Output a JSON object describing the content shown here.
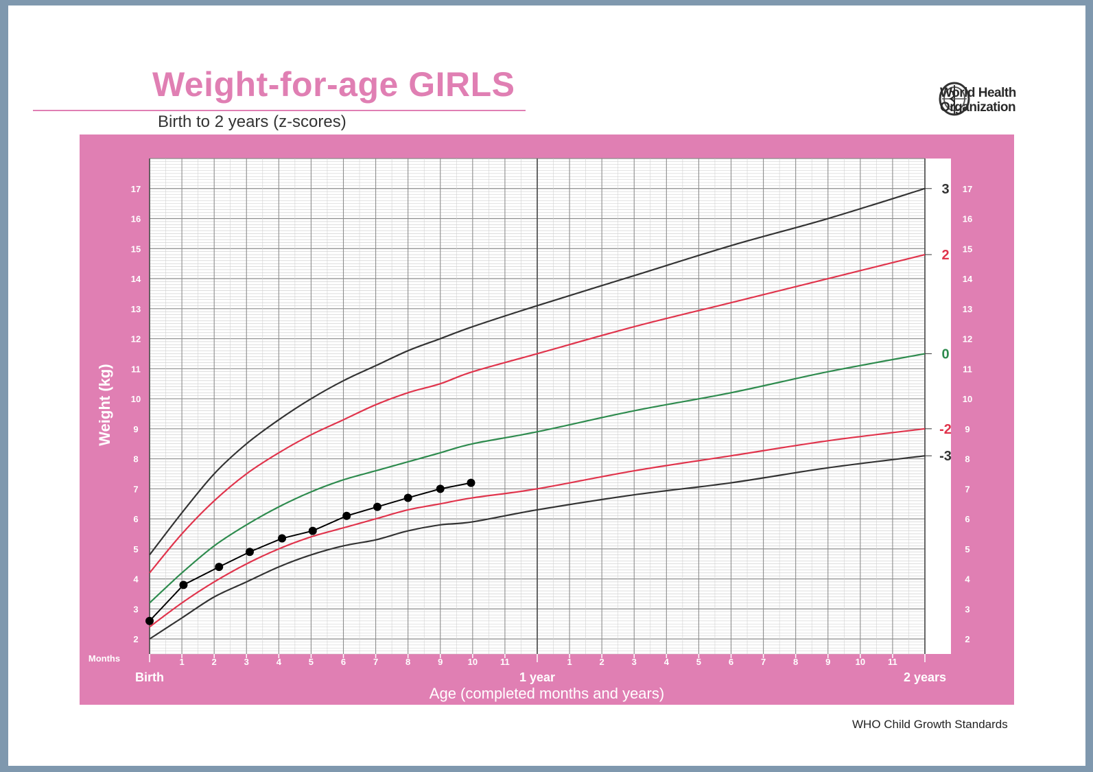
{
  "title": "Weight-for-age GIRLS",
  "subtitle": "Birth to 2 years (z-scores)",
  "logo": {
    "line1": "World Health",
    "line2": "Organization",
    "icon": "who-emblem-icon"
  },
  "footer": "WHO Child Growth Standards",
  "colors": {
    "frame": "#e07fb3",
    "grid": "#b8b8b8",
    "z3": "#333333",
    "z2": "#e0344c",
    "z0": "#2e8b4e",
    "child": "#000000"
  },
  "chart_data": {
    "type": "line",
    "ylabel": "Weight (kg)",
    "xlabel": "Age (completed months and years)",
    "x_unit_label": "Months",
    "ylim": [
      1.5,
      18
    ],
    "xlim": [
      0,
      24
    ],
    "y_ticks": [
      2,
      3,
      4,
      5,
      6,
      7,
      8,
      9,
      10,
      11,
      12,
      13,
      14,
      15,
      16,
      17
    ],
    "x_ticks": [
      {
        "month": 1,
        "label": "1"
      },
      {
        "month": 2,
        "label": "2"
      },
      {
        "month": 3,
        "label": "3"
      },
      {
        "month": 4,
        "label": "4"
      },
      {
        "month": 5,
        "label": "5"
      },
      {
        "month": 6,
        "label": "6"
      },
      {
        "month": 7,
        "label": "7"
      },
      {
        "month": 8,
        "label": "8"
      },
      {
        "month": 9,
        "label": "9"
      },
      {
        "month": 10,
        "label": "10"
      },
      {
        "month": 11,
        "label": "11"
      },
      {
        "month": 13,
        "label": "1"
      },
      {
        "month": 14,
        "label": "2"
      },
      {
        "month": 15,
        "label": "3"
      },
      {
        "month": 16,
        "label": "4"
      },
      {
        "month": 17,
        "label": "5"
      },
      {
        "month": 18,
        "label": "6"
      },
      {
        "month": 19,
        "label": "7"
      },
      {
        "month": 20,
        "label": "8"
      },
      {
        "month": 21,
        "label": "9"
      },
      {
        "month": 22,
        "label": "10"
      },
      {
        "month": 23,
        "label": "11"
      }
    ],
    "x_major_labels": [
      {
        "month": 0,
        "label": "Birth"
      },
      {
        "month": 12,
        "label": "1 year"
      },
      {
        "month": 24,
        "label": "2 years"
      }
    ],
    "grid": true,
    "x": [
      0,
      1,
      2,
      3,
      4,
      5,
      6,
      7,
      8,
      9,
      10,
      12,
      15,
      18,
      21,
      24
    ],
    "series": [
      {
        "name": "3",
        "color": "#333333",
        "values": [
          4.8,
          6.2,
          7.5,
          8.5,
          9.3,
          10.0,
          10.6,
          11.1,
          11.6,
          12.0,
          12.4,
          13.1,
          14.1,
          15.1,
          16.0,
          17.0
        ]
      },
      {
        "name": "2",
        "color": "#e0344c",
        "values": [
          4.2,
          5.5,
          6.6,
          7.5,
          8.2,
          8.8,
          9.3,
          9.8,
          10.2,
          10.5,
          10.9,
          11.5,
          12.4,
          13.2,
          14.0,
          14.8
        ]
      },
      {
        "name": "0",
        "color": "#2e8b4e",
        "values": [
          3.2,
          4.2,
          5.1,
          5.8,
          6.4,
          6.9,
          7.3,
          7.6,
          7.9,
          8.2,
          8.5,
          8.9,
          9.6,
          10.2,
          10.9,
          11.5
        ]
      },
      {
        "name": "-2",
        "color": "#e0344c",
        "values": [
          2.4,
          3.2,
          3.9,
          4.5,
          5.0,
          5.4,
          5.7,
          6.0,
          6.3,
          6.5,
          6.7,
          7.0,
          7.6,
          8.1,
          8.6,
          9.0
        ]
      },
      {
        "name": "-3",
        "color": "#333333",
        "values": [
          2.0,
          2.7,
          3.4,
          3.9,
          4.4,
          4.8,
          5.1,
          5.3,
          5.6,
          5.8,
          5.9,
          6.3,
          6.8,
          7.2,
          7.7,
          8.1
        ]
      }
    ],
    "child_points": {
      "x": [
        0,
        1.05,
        2.15,
        3.1,
        4.1,
        5.05,
        6.1,
        7.05,
        8.0,
        9.0,
        9.95
      ],
      "y": [
        2.6,
        3.8,
        4.4,
        4.9,
        5.35,
        5.6,
        6.1,
        6.4,
        6.7,
        7.0,
        7.2
      ]
    }
  }
}
